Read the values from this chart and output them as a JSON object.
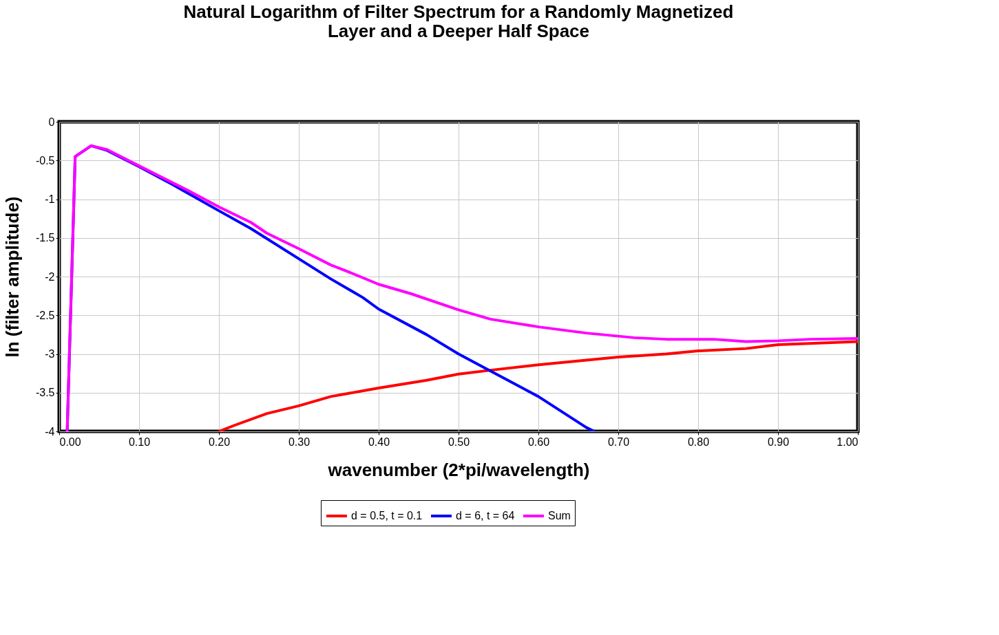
{
  "chart_data": {
    "type": "line",
    "title": "Natural Logarithm of Filter Spectrum for a Randomly Magnetized Layer and a Deeper Half Space",
    "xlabel": "wavenumber (2*pi/wavelength)",
    "ylabel": "ln (filter amplitude)",
    "xlim": [
      0,
      1
    ],
    "ylim": [
      -4,
      0
    ],
    "xticks": [
      {
        "value": 0,
        "label": "0.00"
      },
      {
        "value": 0.1,
        "label": "0.10"
      },
      {
        "value": 0.2,
        "label": "0.20"
      },
      {
        "value": 0.3,
        "label": "0.30"
      },
      {
        "value": 0.4,
        "label": "0.40"
      },
      {
        "value": 0.5,
        "label": "0.50"
      },
      {
        "value": 0.6,
        "label": "0.60"
      },
      {
        "value": 0.7,
        "label": "0.70"
      },
      {
        "value": 0.8,
        "label": "0.80"
      },
      {
        "value": 0.9,
        "label": "0.90"
      },
      {
        "value": 1,
        "label": "1.00"
      }
    ],
    "yticks": [
      0,
      -0.5,
      -1,
      -1.5,
      -2,
      -2.5,
      -3,
      -3.5,
      -4
    ],
    "grid": true,
    "legend": "bottom",
    "marker": "none",
    "line_style": "solid",
    "series": [
      {
        "name": "d = 0.5, t = 0.1",
        "color": "#ff0000",
        "x": [
          0.2,
          0.22,
          0.26,
          0.3,
          0.34,
          0.4,
          0.46,
          0.5,
          0.54,
          0.6,
          0.7,
          0.76,
          0.8,
          0.86,
          0.9,
          1.0
        ],
        "values": [
          -4.0,
          -3.92,
          -3.77,
          -3.67,
          -3.55,
          -3.44,
          -3.34,
          -3.26,
          -3.21,
          -3.14,
          -3.04,
          -3.0,
          -2.96,
          -2.93,
          -2.88,
          -2.84
        ]
      },
      {
        "name": "d = 6, t = 64",
        "color": "#0000ff",
        "x": [
          0.01,
          0.02,
          0.04,
          0.06,
          0.1,
          0.14,
          0.2,
          0.24,
          0.3,
          0.34,
          0.38,
          0.4,
          0.46,
          0.5,
          0.54,
          0.6,
          0.66,
          0.67
        ],
        "values": [
          -4.0,
          -0.45,
          -0.31,
          -0.37,
          -0.58,
          -0.8,
          -1.15,
          -1.38,
          -1.77,
          -2.03,
          -2.27,
          -2.42,
          -2.75,
          -3.0,
          -3.22,
          -3.55,
          -3.95,
          -4.0
        ]
      },
      {
        "name": "Sum",
        "color": "#ff00ff",
        "x": [
          0.01,
          0.02,
          0.04,
          0.06,
          0.1,
          0.16,
          0.2,
          0.24,
          0.26,
          0.3,
          0.34,
          0.36,
          0.4,
          0.44,
          0.5,
          0.54,
          0.6,
          0.66,
          0.72,
          0.76,
          0.82,
          0.86,
          0.9,
          0.94,
          1.0
        ],
        "values": [
          -4.0,
          -0.45,
          -0.31,
          -0.36,
          -0.57,
          -0.88,
          -1.1,
          -1.3,
          -1.44,
          -1.64,
          -1.85,
          -1.93,
          -2.1,
          -2.22,
          -2.43,
          -2.55,
          -2.65,
          -2.73,
          -2.79,
          -2.81,
          -2.81,
          -2.84,
          -2.83,
          -2.81,
          -2.8
        ]
      }
    ]
  }
}
